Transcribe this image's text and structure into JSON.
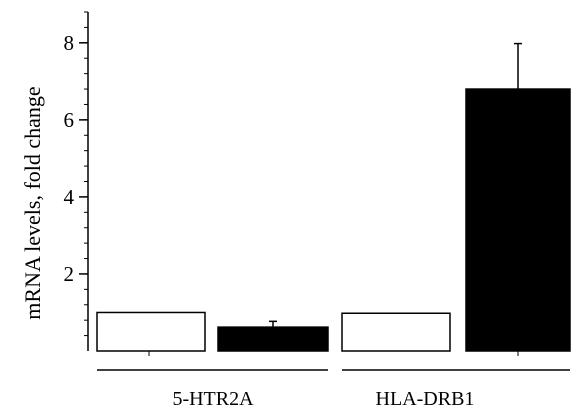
{
  "chart_data": {
    "type": "bar",
    "ylabel": "mRNA levels, fold change",
    "ylim": [
      0,
      8.8
    ],
    "yticks": [
      {
        "value": 2,
        "label": "2"
      },
      {
        "value": 4,
        "label": "4"
      },
      {
        "value": 6,
        "label": "6"
      },
      {
        "value": 8,
        "label": "8"
      }
    ],
    "yminor_step": 0.4,
    "groups": [
      {
        "label": "5-HTR2A",
        "bars": [
          {
            "value": 1.0,
            "error": 0,
            "fill": "#ffffff"
          },
          {
            "value": 0.62,
            "error": 0.15,
            "fill": "#000000"
          }
        ]
      },
      {
        "label": "HLA-DRB1",
        "bars": [
          {
            "value": 0.98,
            "error": 0,
            "fill": "#ffffff"
          },
          {
            "value": 6.8,
            "error": 1.18,
            "fill": "#000000"
          }
        ]
      }
    ],
    "grid": false,
    "legend": "none"
  }
}
